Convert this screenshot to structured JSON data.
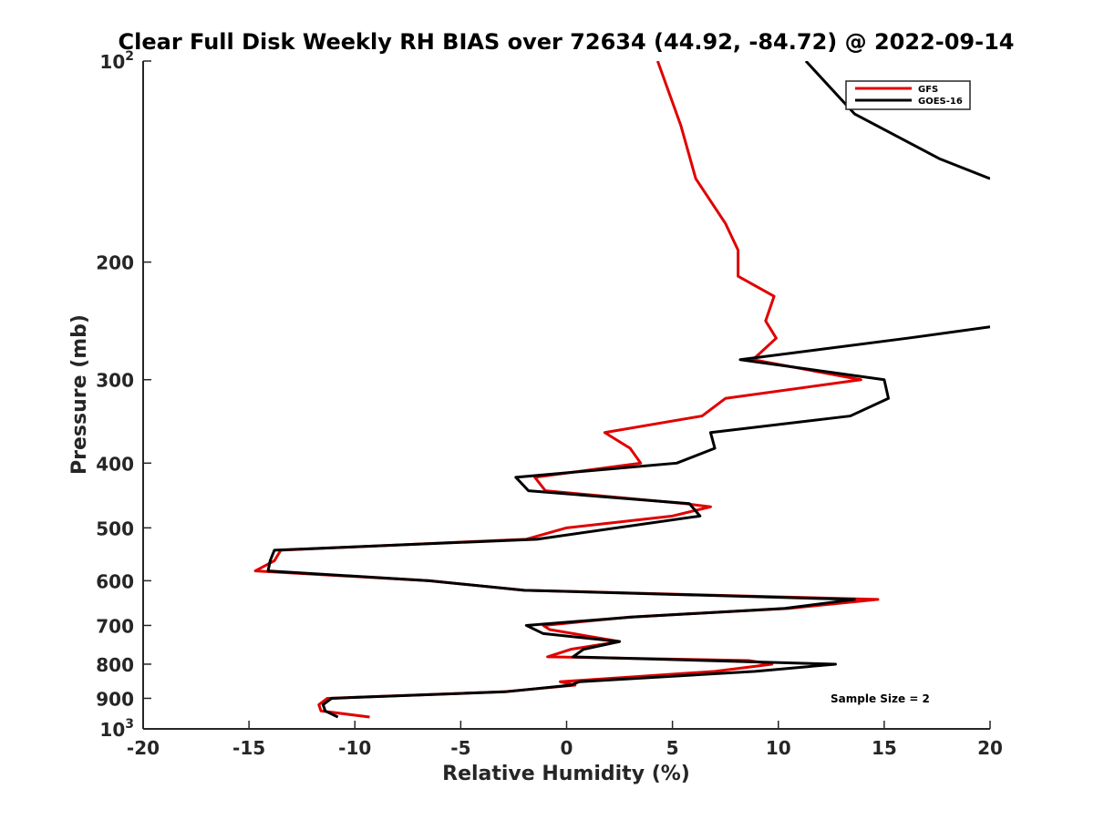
{
  "chart_data": {
    "type": "line",
    "title": "Clear Full Disk Weekly RH BIAS over 72634 (44.92, -84.72) @ 2022-09-14",
    "xlabel": "Relative Humidity (%)",
    "ylabel": "Pressure (mb)",
    "xlim": [
      -20,
      20
    ],
    "ylim": [
      100,
      1000
    ],
    "yscale": "log",
    "y_reversed": true,
    "x_ticks": [
      -20,
      -15,
      -10,
      -5,
      0,
      5,
      10,
      15,
      20
    ],
    "x_tick_labels": [
      "-20",
      "-15",
      "-10",
      "-5",
      "0",
      "5",
      "10",
      "15",
      "20"
    ],
    "y_ticks": [
      100,
      200,
      300,
      400,
      500,
      600,
      700,
      800,
      900,
      1000
    ],
    "y_tick_labels": [
      {
        "base": "10",
        "exp": "2"
      },
      {
        "base": "200",
        "exp": ""
      },
      {
        "base": "300",
        "exp": ""
      },
      {
        "base": "400",
        "exp": ""
      },
      {
        "base": "500",
        "exp": ""
      },
      {
        "base": "600",
        "exp": ""
      },
      {
        "base": "700",
        "exp": ""
      },
      {
        "base": "800",
        "exp": ""
      },
      {
        "base": "900",
        "exp": ""
      },
      {
        "base": "10",
        "exp": "3"
      }
    ],
    "legend_position": "top-right",
    "annotation": "Sample Size = 2",
    "series": [
      {
        "name": "GFS",
        "color": "#e00000",
        "points": [
          [
            4.3,
            100
          ],
          [
            5.4,
            125
          ],
          [
            6.1,
            150
          ],
          [
            7.5,
            175
          ],
          [
            8.1,
            192
          ],
          [
            8.1,
            210
          ],
          [
            9.8,
            225
          ],
          [
            9.4,
            245
          ],
          [
            9.9,
            260
          ],
          [
            8.8,
            280
          ],
          [
            13.9,
            300
          ],
          [
            7.5,
            320
          ],
          [
            6.4,
            340
          ],
          [
            1.8,
            360
          ],
          [
            3.0,
            380
          ],
          [
            3.5,
            400
          ],
          [
            -1.5,
            420
          ],
          [
            -1.0,
            440
          ],
          [
            5.6,
            460
          ],
          [
            6.8,
            465
          ],
          [
            5.0,
            480
          ],
          [
            0.0,
            500
          ],
          [
            -1.9,
            520
          ],
          [
            -13.5,
            540
          ],
          [
            -13.8,
            560
          ],
          [
            -14.7,
            580
          ],
          [
            -6.5,
            600
          ],
          [
            -2.0,
            620
          ],
          [
            14.7,
            640
          ],
          [
            10.5,
            660
          ],
          [
            3.0,
            680
          ],
          [
            -1.1,
            700
          ],
          [
            -0.8,
            710
          ],
          [
            2.5,
            740
          ],
          [
            0.2,
            760
          ],
          [
            -0.9,
            780
          ],
          [
            8.6,
            790
          ],
          [
            9.7,
            800
          ],
          [
            7.0,
            820
          ],
          [
            -0.3,
            850
          ],
          [
            0.4,
            860
          ],
          [
            -3.0,
            880
          ],
          [
            -11.3,
            900
          ],
          [
            -11.7,
            920
          ],
          [
            -11.6,
            940
          ],
          [
            -9.3,
            960
          ]
        ]
      },
      {
        "name": "GOES-16",
        "color": "#000000",
        "points": [
          [
            11.3,
            100
          ],
          [
            13.6,
            120
          ],
          [
            17.6,
            140
          ],
          [
            20.0,
            150
          ],
          [
            null,
            null
          ],
          [
            20.0,
            250
          ],
          [
            16.1,
            260
          ],
          [
            8.2,
            280
          ],
          [
            15.0,
            300
          ],
          [
            15.2,
            320
          ],
          [
            13.4,
            340
          ],
          [
            6.8,
            360
          ],
          [
            7.0,
            380
          ],
          [
            5.2,
            400
          ],
          [
            -2.4,
            420
          ],
          [
            -1.8,
            440
          ],
          [
            5.8,
            460
          ],
          [
            6.3,
            480
          ],
          [
            -1.4,
            520
          ],
          [
            -13.8,
            540
          ],
          [
            -14.0,
            560
          ],
          [
            -14.1,
            580
          ],
          [
            -6.5,
            600
          ],
          [
            -2.0,
            620
          ],
          [
            13.6,
            640
          ],
          [
            10.3,
            660
          ],
          [
            3.1,
            680
          ],
          [
            -1.9,
            700
          ],
          [
            -1.1,
            720
          ],
          [
            2.5,
            740
          ],
          [
            0.8,
            760
          ],
          [
            0.3,
            780
          ],
          [
            12.7,
            800
          ],
          [
            8.9,
            820
          ],
          [
            0.6,
            850
          ],
          [
            0.2,
            860
          ],
          [
            -2.9,
            880
          ],
          [
            -11.1,
            900
          ],
          [
            -11.5,
            920
          ],
          [
            -11.4,
            940
          ],
          [
            -10.8,
            960
          ]
        ]
      }
    ]
  }
}
